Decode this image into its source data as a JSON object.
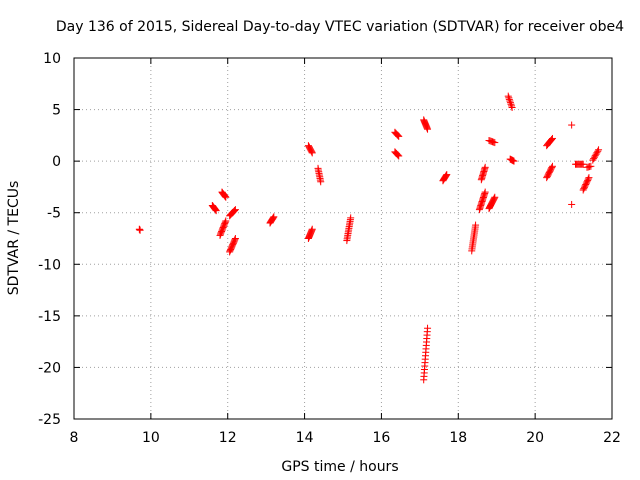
{
  "chart_data": {
    "type": "scatter",
    "title": "Day 136 of 2015, Sidereal Day-to-day VTEC variation (SDTVAR) for receiver obe4",
    "xlabel": "GPS time / hours",
    "ylabel": "SDTVAR / TECUs",
    "xlim": [
      8,
      22
    ],
    "ylim": [
      -25,
      10
    ],
    "xticks": [
      8,
      10,
      12,
      14,
      16,
      18,
      20,
      22
    ],
    "yticks": [
      -25,
      -20,
      -15,
      -10,
      -5,
      0,
      5,
      10
    ],
    "xtick_labels": [
      "8",
      "10",
      "12",
      "14",
      "16",
      "18",
      "20",
      "22"
    ],
    "ytick_labels": [
      "-25",
      "-20",
      "-15",
      "-10",
      "-5",
      "0",
      "5",
      "10"
    ],
    "grid": true,
    "marker": "+",
    "color": "#ff0000",
    "series": [
      {
        "name": "obe4",
        "segments": [
          {
            "x0": 9.7,
            "y0": -6.6,
            "x1": 9.72,
            "y1": -6.7,
            "n": 3
          },
          {
            "x0": 11.6,
            "y0": -4.3,
            "x1": 11.7,
            "y1": -4.8,
            "n": 8
          },
          {
            "x0": 11.85,
            "y0": -3.0,
            "x1": 11.95,
            "y1": -3.5,
            "n": 8
          },
          {
            "x0": 11.8,
            "y0": -7.2,
            "x1": 11.95,
            "y1": -5.8,
            "n": 12
          },
          {
            "x0": 12.05,
            "y0": -5.3,
            "x1": 12.2,
            "y1": -4.7,
            "n": 8
          },
          {
            "x0": 12.05,
            "y0": -8.8,
            "x1": 12.2,
            "y1": -7.5,
            "n": 12
          },
          {
            "x0": 13.1,
            "y0": -6.0,
            "x1": 13.2,
            "y1": -5.4,
            "n": 8
          },
          {
            "x0": 14.1,
            "y0": 1.5,
            "x1": 14.2,
            "y1": 0.8,
            "n": 8
          },
          {
            "x0": 14.1,
            "y0": -7.5,
            "x1": 14.2,
            "y1": -6.6,
            "n": 10
          },
          {
            "x0": 14.35,
            "y0": -0.7,
            "x1": 14.42,
            "y1": -2.0,
            "n": 9
          },
          {
            "x0": 15.1,
            "y0": -7.7,
            "x1": 15.2,
            "y1": -5.5,
            "n": 14
          },
          {
            "x0": 16.35,
            "y0": 2.8,
            "x1": 16.45,
            "y1": 2.4,
            "n": 6
          },
          {
            "x0": 16.35,
            "y0": 0.9,
            "x1": 16.45,
            "y1": 0.5,
            "n": 6
          },
          {
            "x0": 17.1,
            "y0": 4.0,
            "x1": 17.2,
            "y1": 3.1,
            "n": 10
          },
          {
            "x0": 17.1,
            "y0": -21.2,
            "x1": 17.2,
            "y1": -16.2,
            "n": 16
          },
          {
            "x0": 17.6,
            "y0": -1.9,
            "x1": 17.7,
            "y1": -1.3,
            "n": 8
          },
          {
            "x0": 18.35,
            "y0": -8.7,
            "x1": 18.45,
            "y1": -6.2,
            "n": 14
          },
          {
            "x0": 18.55,
            "y0": -4.7,
            "x1": 18.7,
            "y1": -3.0,
            "n": 14
          },
          {
            "x0": 18.6,
            "y0": -1.8,
            "x1": 18.7,
            "y1": -0.6,
            "n": 10
          },
          {
            "x0": 18.8,
            "y0": -4.6,
            "x1": 18.95,
            "y1": -3.5,
            "n": 12
          },
          {
            "x0": 18.8,
            "y0": 2.0,
            "x1": 18.95,
            "y1": 1.8,
            "n": 6
          },
          {
            "x0": 19.3,
            "y0": 6.3,
            "x1": 19.4,
            "y1": 5.2,
            "n": 8
          },
          {
            "x0": 19.35,
            "y0": 0.2,
            "x1": 19.45,
            "y1": 0.0,
            "n": 6
          },
          {
            "x0": 20.3,
            "y0": 1.5,
            "x1": 20.45,
            "y1": 2.2,
            "n": 8
          },
          {
            "x0": 20.3,
            "y0": -1.6,
            "x1": 20.45,
            "y1": -0.5,
            "n": 10
          },
          {
            "x0": 20.95,
            "y0": 3.5,
            "x1": 20.95,
            "y1": 3.5,
            "n": 1
          },
          {
            "x0": 20.95,
            "y0": -4.2,
            "x1": 20.95,
            "y1": -4.2,
            "n": 1
          },
          {
            "x0": 21.05,
            "y0": -0.3,
            "x1": 21.25,
            "y1": -0.3,
            "n": 8
          },
          {
            "x0": 21.25,
            "y0": -2.8,
            "x1": 21.4,
            "y1": -1.6,
            "n": 10
          },
          {
            "x0": 21.35,
            "y0": -0.6,
            "x1": 21.45,
            "y1": -0.5,
            "n": 4
          },
          {
            "x0": 21.5,
            "y0": 0.1,
            "x1": 21.65,
            "y1": 1.1,
            "n": 8
          }
        ]
      }
    ]
  }
}
